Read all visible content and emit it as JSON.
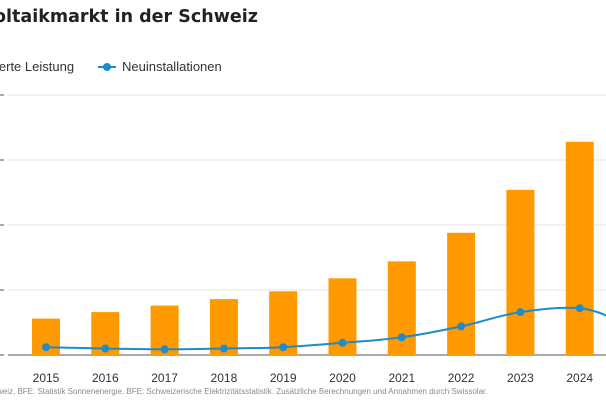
{
  "chart_data": {
    "type": "bar",
    "title": "oltaikmarkt in der Schweiz",
    "categories": [
      "2015",
      "2016",
      "2017",
      "2018",
      "2019",
      "2020",
      "2021",
      "2022",
      "2023",
      "2024"
    ],
    "series": [
      {
        "name": "ierte Leistung",
        "type": "bar",
        "color": "#FF9900",
        "values": [
          1.4,
          1.65,
          1.9,
          2.15,
          2.45,
          2.95,
          3.6,
          4.7,
          6.35,
          8.2
        ]
      },
      {
        "name": "Neuinstallationen",
        "type": "line",
        "color": "#1F8BC9",
        "values": [
          0.3,
          0.25,
          0.22,
          0.25,
          0.3,
          0.47,
          0.68,
          1.1,
          1.65,
          1.8
        ]
      }
    ],
    "ylim": [
      0,
      10
    ],
    "grid": true,
    "legend_position": "top-left",
    "source_note": "weiz, BFE: Statistik Sonnenenergie. BFE: Schweizerische Elektrizitätsstatistik. Zusätzliche Berechnungen und Annahmen durch Swissolar."
  }
}
